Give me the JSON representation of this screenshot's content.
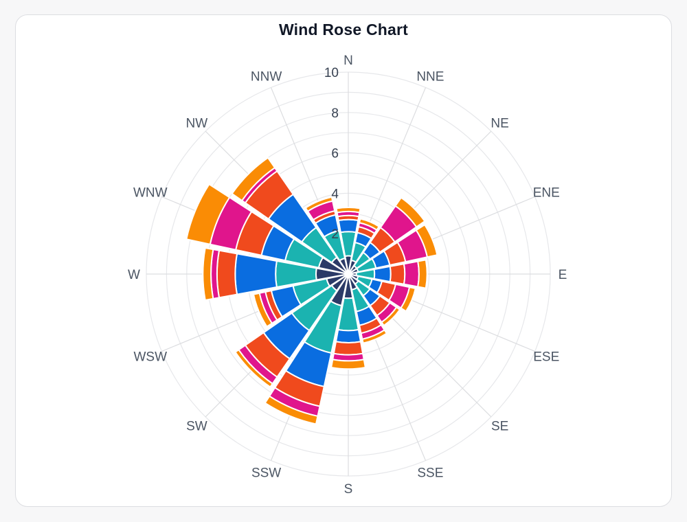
{
  "chart_data": {
    "type": "bar",
    "subtype": "polar-stacked-bar",
    "title": "Wind Rose Chart",
    "directions": [
      "N",
      "NNE",
      "NE",
      "ENE",
      "E",
      "ESE",
      "SE",
      "SSE",
      "S",
      "SSW",
      "SW",
      "WSW",
      "W",
      "WNW",
      "NW",
      "NNW"
    ],
    "radial_axis": {
      "range": [
        0,
        10
      ],
      "ticks": [
        2,
        4,
        6,
        8,
        10
      ],
      "grid": true
    },
    "legend": "none",
    "series": [
      {
        "color": "#2b3a67",
        "values": [
          0.9,
          0.7,
          0.5,
          0.5,
          0.4,
          0.5,
          0.6,
          0.8,
          1.2,
          1.6,
          1.0,
          1.1,
          1.6,
          1.5,
          1.0,
          0.8
        ]
      },
      {
        "color": "#1bb3b0",
        "values": [
          1.2,
          0.9,
          0.8,
          0.9,
          0.9,
          0.7,
          0.7,
          1.1,
          1.6,
          2.4,
          2.4,
          1.7,
          2.0,
          1.7,
          1.8,
          1.4
        ]
      },
      {
        "color": "#0a6de0",
        "values": [
          0.6,
          0.5,
          0.6,
          0.7,
          0.8,
          0.5,
          0.6,
          0.7,
          0.6,
          1.7,
          1.7,
          1.1,
          2.0,
          1.2,
          2.0,
          0.8
        ]
      },
      {
        "color": "#f04a1d",
        "values": [
          0.2,
          0.3,
          0.9,
          0.8,
          0.7,
          0.7,
          0.6,
          0.4,
          0.6,
          1.0,
          1.1,
          0.3,
          0.9,
          1.3,
          1.4,
          0.2
        ]
      },
      {
        "color": "#e0158c",
        "values": [
          0.2,
          0.2,
          1.3,
          1.1,
          0.7,
          0.7,
          0.4,
          0.3,
          0.3,
          0.5,
          0.4,
          0.3,
          0.3,
          1.3,
          0.2,
          0.5
        ]
      },
      {
        "color": "#fa8c05",
        "values": [
          0.2,
          0.2,
          0.5,
          0.5,
          0.4,
          0.3,
          0.2,
          0.2,
          0.4,
          0.4,
          0.2,
          0.3,
          0.4,
          1.2,
          0.6,
          0.2
        ]
      }
    ]
  }
}
